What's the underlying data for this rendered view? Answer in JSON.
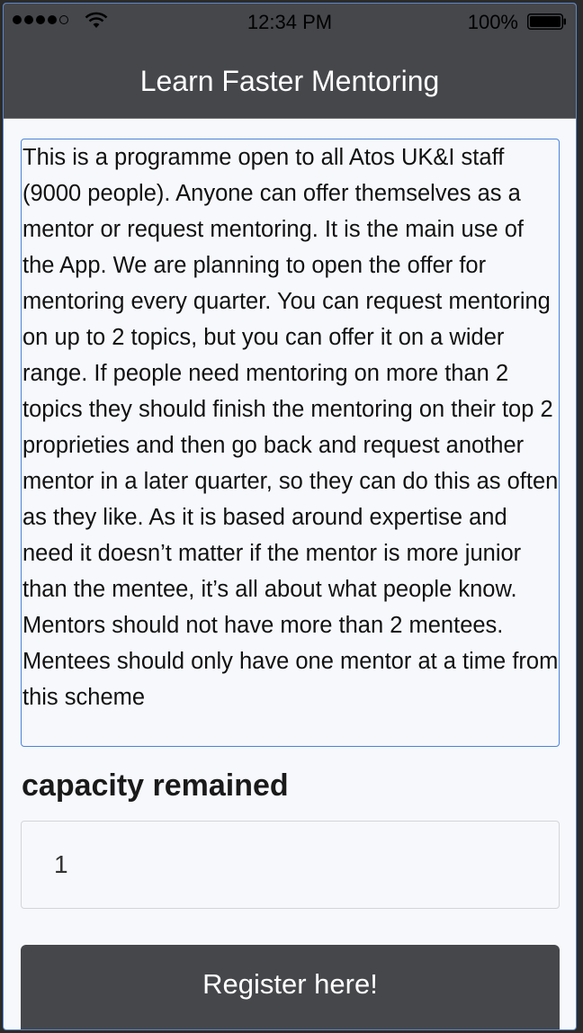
{
  "status_bar": {
    "time": "12:34 PM",
    "battery_percent": "100%",
    "signal_bars_filled": 4,
    "signal_bars_total": 5,
    "wifi_icon": "wifi-icon",
    "battery_icon": "battery-icon"
  },
  "header": {
    "title": "Learn Faster Mentoring"
  },
  "main": {
    "description": "This is a programme open to all Atos UK&I staff (9000 people). Anyone can offer themselves as a mentor or request mentoring. It is the main use of the App. We are planning to open the offer for mentoring every quarter. You can request mentoring on up to 2 topics, but you can offer it on a wider range. If people need mentoring on more than 2 topics they should finish the mentoring on their top 2 proprieties and then go back and request another mentor in a later quarter, so they can do this as often as they like. As it is based around expertise and need it doesn’t matter if the mentor is more junior than the mentee, it’s all about what people know. Mentors should not have more than 2 mentees. Mentees should only have one mentor at a time from this scheme",
    "capacity_label": "capacity remained",
    "capacity_value": "1",
    "register_button_label": "Register here!"
  },
  "colors": {
    "navbar_bg": "#45474b",
    "page_bg": "#f6f8fc",
    "accent_border": "#4a84d9",
    "button_bg": "#45474b",
    "button_text": "#ffffff"
  }
}
